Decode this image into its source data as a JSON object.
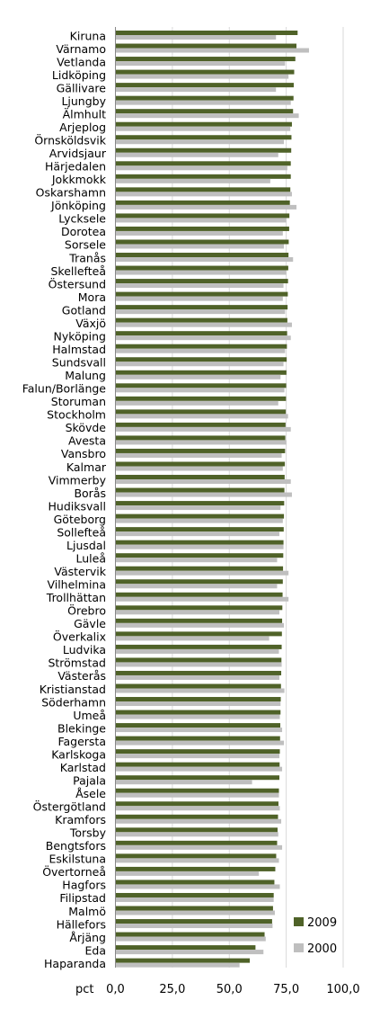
{
  "chart_data": {
    "type": "bar",
    "orientation": "horizontal",
    "title": "",
    "xlabel": "",
    "ylabel": "",
    "unit_label": "pct",
    "xlim": [
      0,
      100
    ],
    "x_ticks": [
      "0,0",
      "25,0",
      "50,0",
      "75,0",
      "100,0"
    ],
    "grid": "vertical",
    "legend_position": "bottom-right",
    "colors": {
      "2009": "#4f6228",
      "2000": "#bfbfbf"
    },
    "categories": [
      "Kiruna",
      "Värnamo",
      "Vetlanda",
      "Lidköping",
      "Gällivare",
      "Ljungby",
      "Älmhult",
      "Arjeplog",
      "Örnsköldsvik",
      "Arvidsjaur",
      "Härjedalen",
      "Jokkmokk",
      "Oskarshamn",
      "Jönköping",
      "Lycksele",
      "Dorotea",
      "Sorsele",
      "Tranås",
      "Skellefteå",
      "Östersund",
      "Mora",
      "Gotland",
      "Växjö",
      "Nyköping",
      "Halmstad",
      "Sundsvall",
      "Malung",
      "Falun/Borlänge",
      "Storuman",
      "Stockholm",
      "Skövde",
      "Avesta",
      "Vansbro",
      "Kalmar",
      "Vimmerby",
      "Borås",
      "Hudiksvall",
      "Göteborg",
      "Sollefteå",
      "Ljusdal",
      "Luleå",
      "Västervik",
      "Vilhelmina",
      "Trollhättan",
      "Örebro",
      "Gävle",
      "Överkalix",
      "Ludvika",
      "Strömstad",
      "Västerås",
      "Kristianstad",
      "Söderhamn",
      "Umeå",
      "Blekinge",
      "Fagersta",
      "Karlskoga",
      "Karlstad",
      "Pajala",
      "Åsele",
      "Östergötland",
      "Kramfors",
      "Torsby",
      "Bengtsfors",
      "Eskilstuna",
      "Övertorneå",
      "Hagfors",
      "Filipstad",
      "Malmö",
      "Hällefors",
      "Årjäng",
      "Eda",
      "Haparanda"
    ],
    "series": [
      {
        "name": "2009",
        "values": [
          80,
          79.5,
          79,
          78.5,
          78.3,
          78.2,
          78,
          77.5,
          77.3,
          77.2,
          77,
          77,
          76.8,
          76.6,
          76.4,
          76.3,
          76.1,
          76,
          75.9,
          75.8,
          75.7,
          75.6,
          75.5,
          75.4,
          75.3,
          75.2,
          75.1,
          75,
          74.9,
          74.8,
          74.7,
          74.6,
          74.5,
          74.4,
          74.3,
          74.2,
          74.1,
          74,
          73.9,
          73.8,
          73.7,
          73.6,
          73.5,
          73.4,
          73.3,
          73.2,
          73.1,
          73,
          72.9,
          72.8,
          72.7,
          72.6,
          72.5,
          72.4,
          72.3,
          72.2,
          72.1,
          72,
          71.8,
          71.6,
          71.4,
          71.2,
          71,
          70.6,
          70.2,
          69.8,
          69.5,
          69.2,
          68.8,
          65.5,
          61.5,
          59
        ]
      },
      {
        "name": "2000",
        "values": [
          70.5,
          85,
          74.5,
          76,
          70.5,
          77,
          80.5,
          76.8,
          74,
          71.5,
          75.5,
          68,
          77.5,
          79.5,
          75,
          73.5,
          74,
          78,
          75,
          73.8,
          73.5,
          74.5,
          77.5,
          77,
          74.5,
          73.8,
          72.5,
          74.2,
          71.5,
          75.8,
          77,
          75,
          73,
          73.5,
          77,
          77.5,
          72.5,
          73.5,
          72,
          73.8,
          71,
          76,
          71,
          76,
          72,
          74,
          67.5,
          71.8,
          73,
          72,
          74.2,
          72.5,
          72.2,
          73.2,
          74,
          72,
          73.2,
          60,
          71.8,
          72.2,
          72.8,
          71.5,
          73.2,
          71.8,
          63,
          72.2,
          69.5,
          70,
          69,
          66,
          65,
          54.5
        ]
      }
    ]
  }
}
